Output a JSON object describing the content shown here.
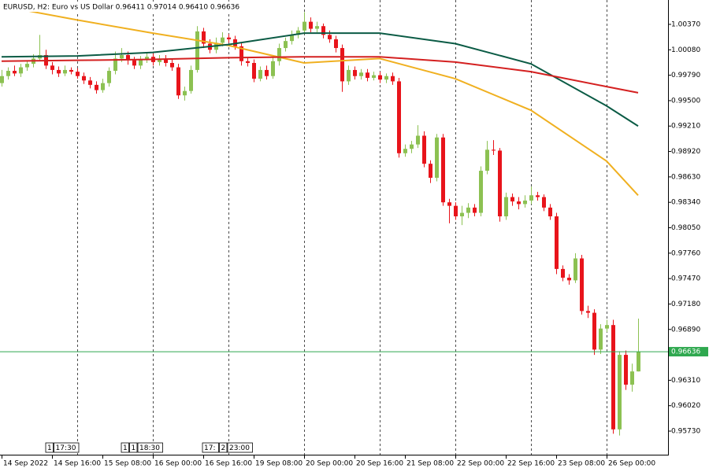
{
  "chart_data": {
    "type": "candlestick",
    "title": "EURUSD, H2:  Euro vs US Dollar  0.96411 0.97014 0.96410 0.96636",
    "categories": [
      "14 Sep 2022",
      null,
      null,
      null,
      null,
      null,
      null,
      null,
      "14 Sep 16:00",
      null,
      null,
      null,
      null,
      null,
      null,
      null,
      "15 Sep 08:00",
      null,
      null,
      null,
      null,
      null,
      null,
      null,
      "16 Sep 00:00",
      null,
      null,
      null,
      null,
      null,
      null,
      null,
      "16 Sep 16:00",
      null,
      null,
      null,
      null,
      null,
      null,
      null,
      "19 Sep 08:00",
      null,
      null,
      null,
      null,
      null,
      null,
      null,
      "20 Sep 00:00",
      null,
      null,
      null,
      null,
      null,
      null,
      null,
      "20 Sep 16:00",
      null,
      null,
      null,
      null,
      null,
      null,
      null,
      "21 Sep 08:00",
      null,
      null,
      null,
      null,
      null,
      null,
      null,
      "22 Sep 00:00",
      null,
      null,
      null,
      null,
      null,
      null,
      null,
      "22 Sep 16:00",
      null,
      null,
      null,
      null,
      null,
      null,
      null,
      "23 Sep 08:00",
      null,
      null,
      null,
      null,
      null,
      null,
      null,
      "26 Sep 00:00",
      null,
      null,
      null,
      null,
      null
    ],
    "open": [
      0.997,
      0.9978,
      0.9984,
      0.9981,
      0.9988,
      0.9992,
      0.9998,
      1.0002,
      0.999,
      0.9985,
      0.9981,
      0.9985,
      0.9983,
      0.9978,
      0.9973,
      0.9968,
      0.9962,
      0.997,
      0.9984,
      0.9998,
      1.0002,
      0.9996,
      0.999,
      0.9997,
      1.0,
      0.9994,
      0.9998,
      0.9993,
      0.9988,
      0.9956,
      0.9961,
      0.9985,
      1.0029,
      1.0015,
      1.0008,
      1.0016,
      1.0022,
      1.002,
      1.0012,
      0.9995,
      0.9993,
      0.9975,
      0.9985,
      0.9978,
      0.9995,
      1.001,
      1.0018,
      1.0025,
      1.003,
      1.004,
      1.0032,
      1.0035,
      1.0025,
      1.002,
      1.001,
      0.9972,
      0.9985,
      0.9978,
      0.9982,
      0.9976,
      0.9979,
      0.9974,
      0.9978,
      0.9972,
      0.989,
      0.9895,
      0.99,
      0.991,
      0.9878,
      0.9862,
      0.9908,
      0.9834,
      0.983,
      0.9818,
      0.9822,
      0.9828,
      0.9822,
      0.987,
      0.9894,
      0.9893,
      0.9818,
      0.984,
      0.9835,
      0.9832,
      0.9836,
      0.9842,
      0.984,
      0.9828,
      0.9818,
      0.9758,
      0.9748,
      0.9745,
      0.977,
      0.971,
      0.9708,
      0.9666,
      0.969,
      0.9694,
      0.9575,
      0.966,
      0.9626,
      0.96411
    ],
    "high": [
      0.9985,
      0.9988,
      0.999,
      0.9992,
      0.9996,
      1.0003,
      1.0025,
      1.0008,
      0.9994,
      0.9989,
      0.999,
      0.9988,
      0.9987,
      0.9982,
      0.9977,
      0.9972,
      0.9975,
      0.9988,
      1.0006,
      1.001,
      1.0006,
      1.0,
      1.0001,
      1.0005,
      1.0004,
      1.0002,
      1.0002,
      0.9997,
      0.9992,
      0.9966,
      0.999,
      1.0035,
      1.0033,
      1.002,
      1.0022,
      1.0028,
      1.0026,
      1.0024,
      1.0016,
      0.9999,
      0.9997,
      0.9989,
      0.999,
      0.9999,
      1.0015,
      1.0022,
      1.003,
      1.0034,
      1.0051,
      1.0045,
      1.004,
      1.0038,
      1.003,
      1.0024,
      1.0014,
      0.999,
      0.9989,
      0.9986,
      0.9986,
      0.9983,
      0.9983,
      0.9981,
      0.9982,
      0.9976,
      0.99,
      0.9904,
      0.9922,
      0.9915,
      0.9882,
      0.9912,
      0.9912,
      0.9838,
      0.9834,
      0.983,
      0.9833,
      0.9832,
      0.9875,
      0.9904,
      0.9905,
      0.9896,
      0.9845,
      0.9844,
      0.984,
      0.9842,
      0.9852,
      0.9846,
      0.9843,
      0.9832,
      0.9822,
      0.9762,
      0.9752,
      0.9776,
      0.9774,
      0.9716,
      0.9712,
      0.9695,
      0.97,
      0.97,
      0.9664,
      0.9665,
      0.965,
      0.97014
    ],
    "low": [
      0.9966,
      0.9974,
      0.9978,
      0.9977,
      0.9984,
      0.9988,
      0.9995,
      0.9986,
      0.998,
      0.9977,
      0.9978,
      0.998,
      0.9975,
      0.9969,
      0.9964,
      0.9958,
      0.9959,
      0.9966,
      0.998,
      0.9994,
      0.9991,
      0.9986,
      0.9986,
      0.9993,
      0.999,
      0.999,
      0.9989,
      0.9984,
      0.9952,
      0.995,
      0.9958,
      0.9982,
      1.001,
      1.0004,
      1.0004,
      1.0012,
      1.0016,
      1.0008,
      0.999,
      0.9989,
      0.9971,
      0.9972,
      0.9974,
      0.9975,
      0.999,
      1.0006,
      1.0014,
      1.0021,
      1.0026,
      1.0028,
      1.0028,
      1.0021,
      1.0016,
      1.0005,
      0.996,
      0.9968,
      0.9974,
      0.9974,
      0.9972,
      0.9973,
      0.997,
      0.997,
      0.9968,
      0.9885,
      0.9886,
      0.989,
      0.9896,
      0.9874,
      0.9856,
      0.9858,
      0.983,
      0.981,
      0.9814,
      0.9808,
      0.9816,
      0.9818,
      0.9818,
      0.9866,
      0.9888,
      0.9812,
      0.9814,
      0.983,
      0.9826,
      0.9828,
      0.9832,
      0.9836,
      0.9824,
      0.9814,
      0.9752,
      0.9744,
      0.974,
      0.9742,
      0.9706,
      0.9702,
      0.966,
      0.9661,
      0.9686,
      0.957,
      0.9568,
      0.962,
      0.9618,
      0.9641
    ],
    "close": [
      0.9978,
      0.9984,
      0.9981,
      0.9988,
      0.9992,
      0.9998,
      1.0002,
      0.999,
      0.9985,
      0.9981,
      0.9985,
      0.9983,
      0.9978,
      0.9973,
      0.9968,
      0.9962,
      0.997,
      0.9984,
      0.9998,
      1.0002,
      0.9996,
      0.999,
      0.9997,
      1.0,
      0.9994,
      0.9998,
      0.9993,
      0.9988,
      0.9956,
      0.9961,
      0.9985,
      1.0029,
      1.0015,
      1.0008,
      1.0016,
      1.0022,
      1.002,
      1.0012,
      0.9995,
      0.9993,
      0.9975,
      0.9985,
      0.9978,
      0.9995,
      1.001,
      1.0018,
      1.0025,
      1.003,
      1.004,
      1.0032,
      1.0035,
      1.0025,
      1.002,
      1.001,
      0.9972,
      0.9985,
      0.9978,
      0.9982,
      0.9976,
      0.9979,
      0.9974,
      0.9978,
      0.9972,
      0.989,
      0.9895,
      0.99,
      0.991,
      0.9878,
      0.9862,
      0.9908,
      0.9834,
      0.983,
      0.9818,
      0.9822,
      0.9828,
      0.9822,
      0.987,
      0.9894,
      0.9893,
      0.9818,
      0.984,
      0.9835,
      0.9832,
      0.9836,
      0.9842,
      0.984,
      0.9828,
      0.9818,
      0.9758,
      0.9748,
      0.9745,
      0.977,
      0.971,
      0.9708,
      0.9666,
      0.969,
      0.9694,
      0.9575,
      0.966,
      0.9626,
      0.96411,
      0.96636
    ],
    "up_color": "#8cc152",
    "down_color": "#e8141b",
    "lines": [
      {
        "color": "#f0b020",
        "x": [
          0,
          12,
          24,
          36,
          48,
          60,
          72,
          84,
          96,
          101
        ],
        "values": [
          1.0058,
          1.0042,
          1.0027,
          1.0013,
          0.9993,
          0.9998,
          0.9975,
          0.9939,
          0.9881,
          0.9842
        ]
      },
      {
        "color": "#0b5b45",
        "x": [
          0,
          12,
          24,
          36,
          48,
          60,
          72,
          84,
          96,
          101
        ],
        "values": [
          1.0,
          1.0001,
          1.0005,
          1.0014,
          1.0027,
          1.0027,
          1.0015,
          0.9992,
          0.9944,
          0.9921
        ]
      },
      {
        "color": "#d42020",
        "x": [
          0,
          12,
          24,
          36,
          48,
          60,
          72,
          84,
          96,
          101
        ],
        "values": [
          0.9995,
          0.9996,
          0.9997,
          0.9999,
          1.0,
          1.0,
          0.9994,
          0.9983,
          0.9966,
          0.9959
        ]
      }
    ],
    "price_line": {
      "value": 0.96636,
      "color": "#2fa84f"
    },
    "ylim": [
      0.95461,
      1.00648
    ],
    "yticks": [
      {
        "value": 1.0037,
        "label": "1.00370"
      },
      {
        "value": 1.0008,
        "label": "1.00080"
      },
      {
        "value": 0.9979,
        "label": "0.99790"
      },
      {
        "value": 0.995,
        "label": "0.99500"
      },
      {
        "value": 0.9921,
        "label": "0.99210"
      },
      {
        "value": 0.9892,
        "label": "0.98920"
      },
      {
        "value": 0.9863,
        "label": "0.98630"
      },
      {
        "value": 0.9834,
        "label": "0.98340"
      },
      {
        "value": 0.9805,
        "label": "0.98050"
      },
      {
        "value": 0.9776,
        "label": "0.97760"
      },
      {
        "value": 0.9747,
        "label": "0.97470"
      },
      {
        "value": 0.9718,
        "label": "0.97180"
      },
      {
        "value": 0.9689,
        "label": "0.96890"
      },
      {
        "value": 0.9631,
        "label": "0.96310"
      },
      {
        "value": 0.9602,
        "label": "0.96020"
      },
      {
        "value": 0.9573,
        "label": "0.95730"
      }
    ],
    "events": [
      [
        "1",
        "17:30"
      ],
      [
        "1",
        "1",
        "18:30"
      ],
      [
        "17:",
        "2",
        "23:00"
      ]
    ]
  }
}
